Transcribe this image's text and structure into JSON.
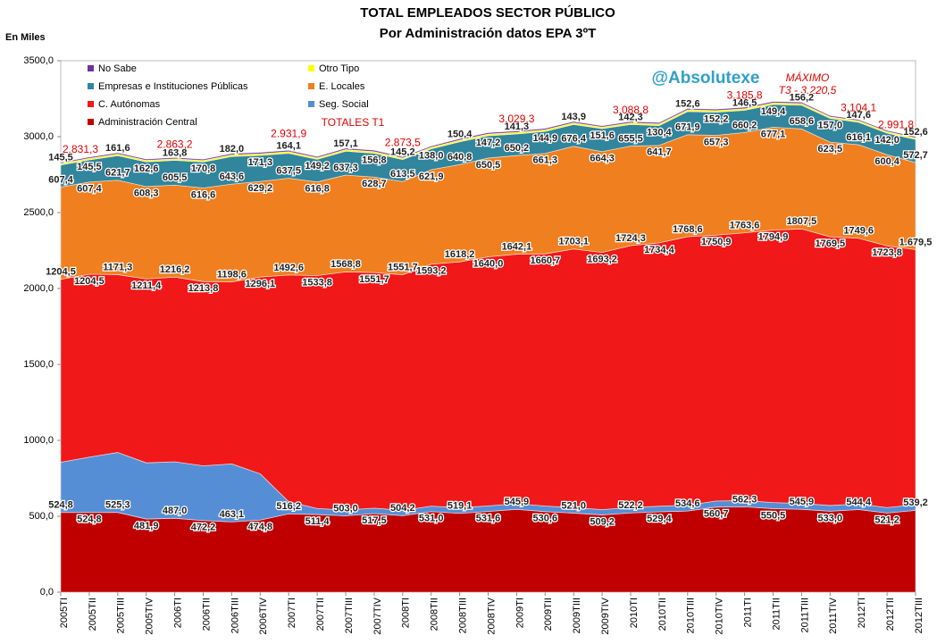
{
  "chart_data": {
    "type": "stacked_area",
    "title": "TOTAL EMPLEADOS SECTOR PÚBLICO",
    "subtitle": "Por Administración datos EPA 3ºT",
    "y_label": "En Miles",
    "brand": "@Absolutexe",
    "max_annotation": [
      "MÁXIMO",
      "T3 - 3.220,5"
    ],
    "totals_note": "TOTALES T1",
    "categories": [
      "2005TI",
      "2005TII",
      "2005TIII",
      "2005TIV",
      "2006TI",
      "2006TII",
      "2006TIII",
      "2006TIV",
      "2007TI",
      "2007TII",
      "2007TIII",
      "2007TIV",
      "2008TI",
      "2008TII",
      "2008TIII",
      "2008TIV",
      "2009TI",
      "2009TII",
      "2009TIII",
      "2009TIV",
      "2010TI",
      "2010TII",
      "2010TIII",
      "2010TIV",
      "2011TI",
      "2011TII",
      "2011TIII",
      "2011TIV",
      "2012TI",
      "2012TII",
      "2012TIII"
    ],
    "ylim": [
      0,
      3500
    ],
    "yticks": [
      {
        "value": 0,
        "label": "0,0"
      },
      {
        "value": 500,
        "label": "500,0"
      },
      {
        "value": 1000,
        "label": "1000,0"
      },
      {
        "value": 1500,
        "label": "1500,0"
      },
      {
        "value": 2000,
        "label": "2000,0"
      },
      {
        "value": 2500,
        "label": "2500,0"
      },
      {
        "value": 3000,
        "label": "3000,0"
      },
      {
        "value": 3500,
        "label": "3500,0"
      }
    ],
    "grid": false,
    "series": [
      {
        "name": "Administración Central",
        "color": "#c00000",
        "values": [
          524.8,
          524.8,
          525.3,
          481.9,
          487.0,
          472.2,
          463.1,
          474.8,
          516.2,
          511.4,
          503.0,
          517.5,
          504.2,
          531.0,
          519.1,
          531.6,
          545.9,
          530.6,
          521.0,
          509.2,
          522.2,
          529.4,
          534.6,
          560.7,
          562.3,
          550.5,
          545.9,
          533.0,
          544.4,
          521.2,
          539.2
        ],
        "value_labels": [
          "524,8",
          "524,8",
          "525,3",
          "481,9",
          "487,0",
          "472,2",
          "463,1",
          "474,8",
          "516,2",
          "511,4",
          "503,0",
          "517,5",
          "504,2",
          "531,0",
          "519,1",
          "531,6",
          "545,9",
          "530,6",
          "521,0",
          "509,2",
          "522,2",
          "529,4",
          "534,6",
          "560,7",
          "562,3",
          "550,5",
          "545,9",
          "533,0",
          "544,4",
          "521,2",
          "539,2"
        ]
      },
      {
        "name": "Seg. Social",
        "color": "#558ed5",
        "values": [
          331,
          365,
          395,
          370,
          372,
          360,
          382,
          305,
          80,
          40,
          38,
          36,
          35,
          36,
          38,
          37,
          38,
          37,
          36,
          35,
          36,
          37,
          38,
          40,
          41,
          40,
          39,
          38,
          37,
          36,
          38
        ]
      },
      {
        "name": "C. Autónomas",
        "color": "#f01818",
        "values": [
          1204.5,
          1204.5,
          1171.3,
          1211.4,
          1216.2,
          1213.8,
          1198.6,
          1296.1,
          1492.6,
          1533.8,
          1568.8,
          1551.7,
          1551.7,
          1593.2,
          1618.2,
          1640.0,
          1642.1,
          1660.7,
          1703.1,
          1693.2,
          1724.3,
          1734.4,
          1768.6,
          1750.9,
          1763.6,
          1794.9,
          1807.5,
          1769.5,
          1749.6,
          1723.8,
          1679.5
        ],
        "value_labels": [
          "1204,5",
          "1204,5",
          "1171,3",
          "1211,4",
          "1216,2",
          "1213,8",
          "1198,6",
          "1296,1",
          "1492,6",
          "1533,8",
          "1568,8",
          "1551,7",
          "1551,7",
          "1593,2",
          "1618,2",
          "1640,0",
          "1642,1",
          "1660,7",
          "1703,1",
          "1693,2",
          "1724,3",
          "1734,4",
          "1768,6",
          "1750,9",
          "1763,6",
          "1794,9",
          "1807,5",
          "1769,5",
          "1749,6",
          "1723,8",
          "1.679,5"
        ]
      },
      {
        "name": "E. Locales",
        "color": "#f07f1f",
        "values": [
          607.4,
          607.4,
          621.7,
          608.3,
          605.5,
          616.6,
          643.6,
          629.2,
          637.5,
          616.8,
          637.3,
          628.7,
          613.5,
          621.9,
          640.8,
          650.5,
          650.2,
          661.3,
          676.4,
          664.3,
          655.5,
          641.7,
          671.9,
          657.3,
          660.2,
          677.1,
          658.6,
          623.5,
          616.1,
          600.4,
          572.7
        ],
        "value_labels": [
          "607,4",
          "607,4",
          "621,7",
          "608,3",
          "605,5",
          "616,6",
          "643,6",
          "629,2",
          "637,5",
          "616,8",
          "637,3",
          "628,7",
          "613,5",
          "621,9",
          "640,8",
          "650,5",
          "650,2",
          "661,3",
          "676,4",
          "664,3",
          "655,5",
          "641,7",
          "671,9",
          "657,3",
          "660,2",
          "677,1",
          "658,6",
          "623,5",
          "616,1",
          "600,4",
          "572,7"
        ]
      },
      {
        "name": "Empresas e Instituciones Públicas",
        "color": "#31859c",
        "values": [
          145.5,
          145.5,
          161.6,
          162.6,
          163.8,
          170.8,
          182.0,
          171.3,
          164.1,
          149.2,
          157.1,
          156.8,
          145.2,
          138.0,
          150.4,
          147.2,
          141.3,
          144.9,
          143.9,
          151.6,
          142.3,
          130.4,
          152.6,
          152.2,
          146.5,
          149.4,
          156.2,
          157.0,
          147.6,
          142.0,
          152.6
        ],
        "value_labels": [
          "145,5",
          "145,5",
          "161,6",
          "162,6",
          "163,8",
          "170,8",
          "182,0",
          "171,3",
          "164,1",
          "149,2",
          "157,1",
          "156,8",
          "145,2",
          "138,0",
          "150,4",
          "147,2",
          "141,3",
          "144,9",
          "143,9",
          "151,6",
          "142,3",
          "130,4",
          "152,6",
          "152,2",
          "146,5",
          "149,4",
          "156,2",
          "157,0",
          "147,6",
          "142,0",
          "152,6"
        ]
      },
      {
        "name": "Otro Tipo",
        "color": "#ffff00",
        "values": [
          10,
          10,
          11,
          10,
          10,
          10,
          11,
          11,
          11,
          10,
          11,
          11,
          10,
          10,
          11,
          11,
          11,
          11,
          11,
          10,
          11,
          11,
          11,
          11,
          11,
          11,
          11,
          10,
          10,
          10,
          10
        ]
      },
      {
        "name": "No Sabe",
        "color": "#7030a0",
        "values": [
          8,
          8,
          8,
          8,
          8,
          8,
          9,
          9,
          9,
          8,
          9,
          9,
          8,
          8,
          9,
          9,
          9,
          9,
          9,
          8,
          9,
          9,
          9,
          9,
          9,
          9,
          9,
          8,
          8,
          8,
          8
        ]
      }
    ],
    "totals": {
      "categories": [
        "2005TI",
        "2006TI",
        "2007TI",
        "2008TI",
        "2009TI",
        "2010TI",
        "2011TI",
        "2012TI",
        "2012TIII"
      ],
      "values": [
        2831.3,
        2863.2,
        2931.9,
        2873.5,
        3029.3,
        3088.8,
        3185.8,
        3104.1,
        2991.8
      ],
      "value_labels": [
        "2.831,3",
        "2.863,2",
        "2.931,9",
        "2.873,5",
        "3.029,3",
        "3.088,8",
        "3.185,8",
        "3.104,1",
        "2.991,8"
      ]
    }
  }
}
